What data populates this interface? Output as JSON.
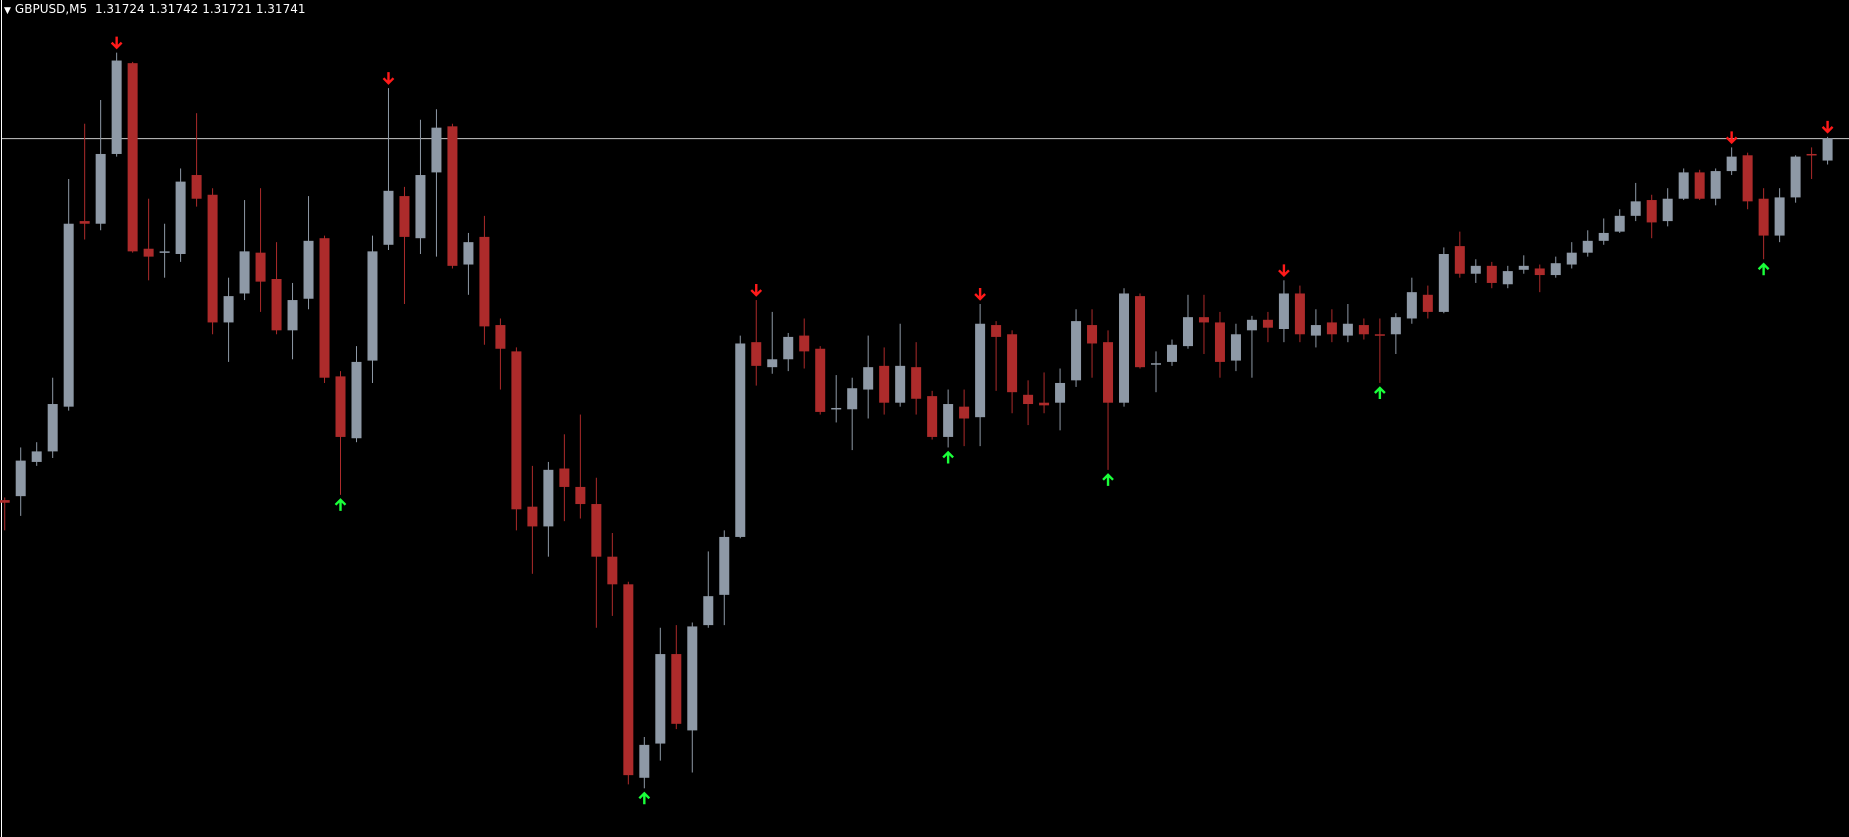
{
  "chart_data": {
    "type": "candlestick",
    "title": "GBPUSD,M5",
    "open": [
      1.31466,
      1.31469,
      1.31495,
      1.31503,
      1.31537,
      1.31678,
      1.31676,
      1.31729,
      1.31798,
      1.31657,
      1.31655,
      1.31653,
      1.31713,
      1.31698,
      1.31601,
      1.31623,
      1.31654,
      1.31634,
      1.31595,
      1.31619,
      1.31665,
      1.3156,
      1.31513,
      1.31572,
      1.3166,
      1.31697,
      1.31665,
      1.31715,
      1.3175,
      1.31645,
      1.31666,
      1.31599,
      1.31579,
      1.31461,
      1.31446,
      1.3149,
      1.31476,
      1.31463,
      1.31423,
      1.31402,
      1.31255,
      1.31281,
      1.31349,
      1.31291,
      1.31371,
      1.31394,
      1.31438,
      1.31586,
      1.31567,
      1.31573,
      1.31591,
      1.31581,
      1.31536,
      1.31535,
      1.3155,
      1.31568,
      1.3154,
      1.31567,
      1.31545,
      1.31514,
      1.31537,
      1.31529,
      1.31599,
      1.31592,
      1.31546,
      1.3154,
      1.3154,
      1.31557,
      1.31599,
      1.31586,
      1.3154,
      1.31621,
      1.3157,
      1.31571,
      1.31583,
      1.31605,
      1.31601,
      1.31572,
      1.31595,
      1.31603,
      1.31596,
      1.31623,
      1.31591,
      1.31601,
      1.31591,
      1.31599,
      1.31592,
      1.31592,
      1.31604,
      1.31622,
      1.31609,
      1.31659,
      1.31638,
      1.31644,
      1.3163,
      1.31641,
      1.31642,
      1.31637,
      1.31645,
      1.31654,
      1.31663,
      1.3167,
      1.31682,
      1.31694,
      1.31678,
      1.31695,
      1.31715,
      1.31695,
      1.31716,
      1.31728,
      1.31695,
      1.31667,
      1.31696,
      1.31729,
      1.31724
    ],
    "high": [
      1.31468,
      1.31506,
      1.3151,
      1.31559,
      1.3171,
      1.31752,
      1.3177,
      1.31806,
      1.31799,
      1.31695,
      1.31676,
      1.31718,
      1.3176,
      1.31703,
      1.31635,
      1.31694,
      1.31703,
      1.31662,
      1.31631,
      1.31697,
      1.31667,
      1.31564,
      1.31583,
      1.31667,
      1.31779,
      1.31704,
      1.31755,
      1.31763,
      1.31752,
      1.31669,
      1.31682,
      1.31604,
      1.31582,
      1.31492,
      1.31495,
      1.31516,
      1.31531,
      1.31483,
      1.31441,
      1.31404,
      1.31286,
      1.31369,
      1.31371,
      1.31373,
      1.31427,
      1.31443,
      1.31591,
      1.31618,
      1.31609,
      1.31593,
      1.31604,
      1.31583,
      1.31561,
      1.31559,
      1.31591,
      1.31582,
      1.316,
      1.31586,
      1.31549,
      1.3155,
      1.3155,
      1.31615,
      1.31602,
      1.31595,
      1.31557,
      1.31563,
      1.31566,
      1.31611,
      1.31611,
      1.31595,
      1.31627,
      1.31623,
      1.31579,
      1.31588,
      1.31622,
      1.31622,
      1.31609,
      1.316,
      1.31606,
      1.31609,
      1.31633,
      1.31629,
      1.31611,
      1.31611,
      1.31615,
      1.31604,
      1.31604,
      1.31608,
      1.31635,
      1.31629,
      1.31658,
      1.3167,
      1.31649,
      1.31647,
      1.31644,
      1.31652,
      1.31645,
      1.31651,
      1.31662,
      1.31671,
      1.3168,
      1.31687,
      1.31707,
      1.31698,
      1.31703,
      1.31718,
      1.31717,
      1.31718,
      1.31734,
      1.3173,
      1.31703,
      1.31703,
      1.31728,
      1.31734,
      1.31742
    ],
    "low": [
      1.31443,
      1.31454,
      1.31492,
      1.31498,
      1.31534,
      1.31664,
      1.31671,
      1.31727,
      1.31654,
      1.31633,
      1.31635,
      1.31647,
      1.31689,
      1.31592,
      1.31571,
      1.31618,
      1.31609,
      1.31592,
      1.31573,
      1.31611,
      1.31555,
      1.3147,
      1.3151,
      1.31555,
      1.31656,
      1.31615,
      1.31653,
      1.31651,
      1.31642,
      1.31622,
      1.31584,
      1.3155,
      1.31443,
      1.3141,
      1.31423,
      1.3145,
      1.31452,
      1.31369,
      1.31378,
      1.3125,
      1.31247,
      1.31268,
      1.31292,
      1.31259,
      1.31369,
      1.31371,
      1.31437,
      1.31553,
      1.31562,
      1.31564,
      1.31566,
      1.31531,
      1.31525,
      1.31504,
      1.31528,
      1.31531,
      1.31537,
      1.31531,
      1.31512,
      1.31506,
      1.31507,
      1.31507,
      1.31549,
      1.31532,
      1.31523,
      1.31532,
      1.31519,
      1.31552,
      1.31559,
      1.31489,
      1.31537,
      1.31566,
      1.31548,
      1.31568,
      1.31581,
      1.31577,
      1.31559,
      1.31564,
      1.31559,
      1.31586,
      1.31586,
      1.31586,
      1.31582,
      1.31586,
      1.31586,
      1.31588,
      1.31555,
      1.31577,
      1.316,
      1.31604,
      1.31608,
      1.31635,
      1.31631,
      1.31627,
      1.31627,
      1.31638,
      1.31624,
      1.31635,
      1.31642,
      1.31651,
      1.3166,
      1.31669,
      1.31678,
      1.31665,
      1.31674,
      1.31694,
      1.31694,
      1.3169,
      1.31713,
      1.31687,
      1.31649,
      1.31662,
      1.31692,
      1.3171,
      1.31721
    ],
    "close": [
      1.31464,
      1.31496,
      1.31503,
      1.31539,
      1.31676,
      1.31676,
      1.31729,
      1.318,
      1.31655,
      1.31651,
      1.31655,
      1.31708,
      1.31695,
      1.31601,
      1.31621,
      1.31655,
      1.31632,
      1.31595,
      1.31618,
      1.31663,
      1.31559,
      1.31514,
      1.31571,
      1.31655,
      1.31701,
      1.31666,
      1.31713,
      1.31749,
      1.31644,
      1.31662,
      1.31598,
      1.31581,
      1.31459,
      1.31446,
      1.31489,
      1.31476,
      1.31463,
      1.31423,
      1.31402,
      1.31257,
      1.3128,
      1.31349,
      1.31296,
      1.3137,
      1.31393,
      1.31438,
      1.31585,
      1.31568,
      1.31573,
      1.3159,
      1.31579,
      1.31533,
      1.31536,
      1.31551,
      1.31567,
      1.3154,
      1.31568,
      1.31543,
      1.31514,
      1.31539,
      1.31528,
      1.316,
      1.3159,
      1.31548,
      1.31539,
      1.31538,
      1.31555,
      1.31602,
      1.31585,
      1.3154,
      1.31623,
      1.31567,
      1.3157,
      1.31584,
      1.31605,
      1.31601,
      1.31571,
      1.31592,
      1.31603,
      1.31597,
      1.31623,
      1.31592,
      1.31599,
      1.31592,
      1.316,
      1.31592,
      1.31591,
      1.31605,
      1.31624,
      1.31609,
      1.31653,
      1.31638,
      1.31644,
      1.31631,
      1.3164,
      1.31644,
      1.31637,
      1.31646,
      1.31654,
      1.31663,
      1.31669,
      1.31682,
      1.31693,
      1.31677,
      1.31695,
      1.31715,
      1.31695,
      1.31716,
      1.31727,
      1.31693,
      1.31667,
      1.31696,
      1.31727,
      1.31728,
      1.31741
    ],
    "up_color": "#8e99a6",
    "down_color": "#ad2b2b",
    "signals_down": {
      "color": "#ff1a1a",
      "indices": [
        7,
        24,
        47,
        61,
        80,
        108,
        114
      ]
    },
    "signals_up": {
      "color": "#1aff3a",
      "indices": [
        21,
        40,
        59,
        69,
        86,
        110
      ]
    },
    "bid_line_color": "#c8c8c8",
    "ylim": [
      1.3121,
      1.31846
    ]
  }
}
